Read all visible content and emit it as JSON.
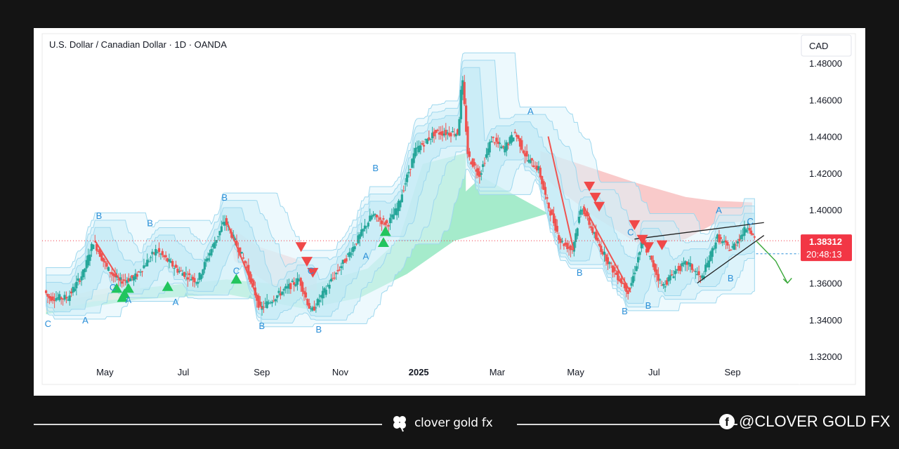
{
  "header": {
    "title": "U.S. Dollar / Canadian Dollar · 1D · OANDA"
  },
  "currency_badge": "CAD",
  "price_badge": {
    "price": "1.38312",
    "countdown": "20:48:13"
  },
  "footer": {
    "brand": "clover gold fx",
    "social": "@CLOVER GOLD FX",
    "social_icon": "facebook-icon"
  },
  "colors": {
    "bull": "#26a69a",
    "bear": "#ef5350",
    "price_label_bg": "#f23645",
    "wave_label": "#2a8fd8",
    "cloud_green": "#7fe3b5",
    "cloud_red": "#f7b8b8",
    "channel_blue": "#9fd8ee"
  },
  "chart_data": {
    "type": "candlestick",
    "title": "U.S. Dollar / Canadian Dollar · 1D · OANDA",
    "ylim": [
      1.32,
      1.48
    ],
    "y_ticks": [
      "1.48000",
      "1.46000",
      "1.44000",
      "1.42000",
      "1.40000",
      "1.38000",
      "1.36000",
      "1.34000",
      "1.32000"
    ],
    "x_ticks": [
      "May",
      "Jul",
      "Sep",
      "Nov",
      "2025",
      "Mar",
      "May",
      "Jul",
      "Sep"
    ],
    "x_tick_pos": [
      3.5,
      5.5,
      7.5,
      9.5,
      11.5,
      13.5,
      15.5,
      17.5,
      19.5
    ],
    "x_range": [
      1.9,
      21.2
    ],
    "last_price": 1.38312,
    "price_path": [
      [
        2.0,
        1.356
      ],
      [
        2.1,
        1.352
      ],
      [
        2.6,
        1.352
      ],
      [
        3.0,
        1.366
      ],
      [
        3.25,
        1.383
      ],
      [
        3.6,
        1.368
      ],
      [
        3.9,
        1.361
      ],
      [
        4.3,
        1.363
      ],
      [
        4.85,
        1.378
      ],
      [
        5.4,
        1.367
      ],
      [
        5.9,
        1.361
      ],
      [
        6.2,
        1.376
      ],
      [
        6.6,
        1.394
      ],
      [
        7.1,
        1.372
      ],
      [
        7.5,
        1.346
      ],
      [
        8.1,
        1.356
      ],
      [
        8.5,
        1.362
      ],
      [
        8.8,
        1.344
      ],
      [
        9.3,
        1.361
      ],
      [
        9.8,
        1.377
      ],
      [
        10.35,
        1.397
      ],
      [
        10.75,
        1.392
      ],
      [
        11.0,
        1.401
      ],
      [
        11.45,
        1.432
      ],
      [
        11.95,
        1.442
      ],
      [
        12.55,
        1.442
      ],
      [
        12.65,
        1.473
      ],
      [
        12.8,
        1.429
      ],
      [
        13.1,
        1.419
      ],
      [
        13.4,
        1.439
      ],
      [
        13.7,
        1.433
      ],
      [
        14.0,
        1.442
      ],
      [
        14.3,
        1.428
      ],
      [
        14.6,
        1.422
      ],
      [
        14.8,
        1.405
      ],
      [
        15.15,
        1.383
      ],
      [
        15.45,
        1.378
      ],
      [
        15.7,
        1.402
      ],
      [
        16.1,
        1.382
      ],
      [
        16.5,
        1.367
      ],
      [
        16.9,
        1.355
      ],
      [
        17.25,
        1.383
      ],
      [
        17.75,
        1.358
      ],
      [
        18.1,
        1.367
      ],
      [
        18.4,
        1.371
      ],
      [
        18.75,
        1.362
      ],
      [
        19.15,
        1.385
      ],
      [
        19.5,
        1.378
      ],
      [
        19.95,
        1.392
      ],
      [
        20.1,
        1.383
      ]
    ],
    "wave_labels": [
      {
        "text": "C",
        "x": 2.05,
        "y": 1.336
      },
      {
        "text": "A",
        "x": 3.0,
        "y": 1.338
      },
      {
        "text": "B",
        "x": 3.35,
        "y": 1.395
      },
      {
        "text": "C",
        "x": 3.7,
        "y": 1.356
      },
      {
        "text": "A",
        "x": 4.1,
        "y": 1.349
      },
      {
        "text": "B",
        "x": 4.65,
        "y": 1.391
      },
      {
        "text": "A",
        "x": 5.3,
        "y": 1.348
      },
      {
        "text": "B",
        "x": 6.55,
        "y": 1.405
      },
      {
        "text": "C",
        "x": 6.85,
        "y": 1.365
      },
      {
        "text": "B",
        "x": 7.5,
        "y": 1.335
      },
      {
        "text": "C",
        "x": 8.75,
        "y": 1.365
      },
      {
        "text": "B",
        "x": 8.95,
        "y": 1.333
      },
      {
        "text": "A",
        "x": 10.15,
        "y": 1.373
      },
      {
        "text": "B",
        "x": 10.4,
        "y": 1.421
      },
      {
        "text": "A",
        "x": 14.35,
        "y": 1.452
      },
      {
        "text": "B",
        "x": 15.6,
        "y": 1.364
      },
      {
        "text": "C",
        "x": 16.9,
        "y": 1.386
      },
      {
        "text": "B",
        "x": 16.75,
        "y": 1.343
      },
      {
        "text": "B",
        "x": 17.35,
        "y": 1.346
      },
      {
        "text": "A",
        "x": 19.15,
        "y": 1.398
      },
      {
        "text": "B",
        "x": 19.45,
        "y": 1.361
      },
      {
        "text": "C",
        "x": 19.95,
        "y": 1.392
      }
    ],
    "buy_signals": [
      [
        3.8,
        1.357
      ],
      [
        3.95,
        1.352
      ],
      [
        4.1,
        1.357
      ],
      [
        4.0,
        1.354
      ],
      [
        5.1,
        1.358
      ],
      [
        6.85,
        1.362
      ],
      [
        10.65,
        1.388
      ],
      [
        10.6,
        1.382
      ]
    ],
    "sell_signals": [
      [
        8.5,
        1.38
      ],
      [
        8.65,
        1.372
      ],
      [
        8.8,
        1.366
      ],
      [
        15.85,
        1.413
      ],
      [
        16.0,
        1.407
      ],
      [
        16.1,
        1.402
      ],
      [
        17.0,
        1.392
      ],
      [
        17.2,
        1.384
      ],
      [
        17.35,
        1.38
      ],
      [
        17.7,
        1.381
      ]
    ],
    "forecast_path": [
      [
        20.1,
        1.383
      ],
      [
        20.6,
        1.372
      ],
      [
        20.9,
        1.36
      ]
    ]
  }
}
